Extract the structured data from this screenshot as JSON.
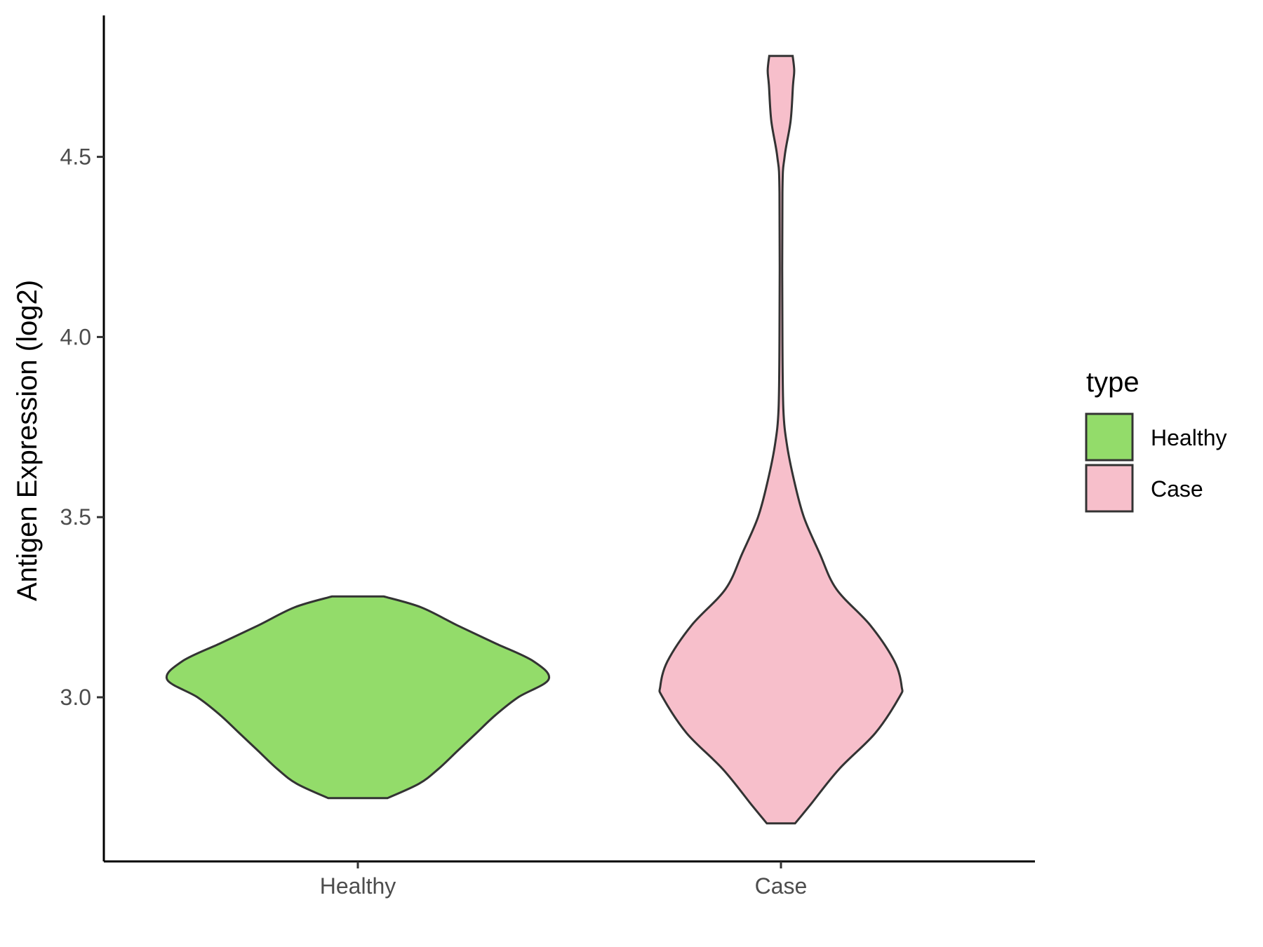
{
  "chart_data": {
    "type": "violin",
    "title": "",
    "xlabel": "",
    "ylabel": "Antigen Expression (log2)",
    "ylim": [
      2.55,
      4.9
    ],
    "yticks": [
      3.0,
      3.5,
      4.0,
      4.5
    ],
    "ytick_labels": [
      "3.0",
      "3.5",
      "4.0",
      "4.5"
    ],
    "categories": [
      "Healthy",
      "Case"
    ],
    "legend": {
      "title": "type",
      "position": "right",
      "entries": [
        {
          "label": "Healthy",
          "color": "#93dc6a"
        },
        {
          "label": "Case",
          "color": "#f7bfcb"
        }
      ]
    },
    "series": [
      {
        "category": "Healthy",
        "color": "#93dc6a",
        "min": 2.72,
        "max": 3.28,
        "density_profile": [
          [
            2.72,
            0.155
          ],
          [
            2.76,
            0.32
          ],
          [
            2.8,
            0.42
          ],
          [
            2.85,
            0.52
          ],
          [
            2.9,
            0.62
          ],
          [
            2.95,
            0.72
          ],
          [
            3.0,
            0.84
          ],
          [
            3.05,
            1.0
          ],
          [
            3.1,
            0.92
          ],
          [
            3.15,
            0.72
          ],
          [
            3.2,
            0.52
          ],
          [
            3.25,
            0.33
          ],
          [
            3.28,
            0.135
          ]
        ]
      },
      {
        "category": "Case",
        "color": "#f7bfcb",
        "min": 2.65,
        "max": 4.78,
        "density_profile": [
          [
            2.65,
            0.117
          ],
          [
            2.7,
            0.24
          ],
          [
            2.8,
            0.48
          ],
          [
            2.9,
            0.78
          ],
          [
            3.0,
            0.98
          ],
          [
            3.03,
            1.0
          ],
          [
            3.1,
            0.94
          ],
          [
            3.2,
            0.74
          ],
          [
            3.3,
            0.46
          ],
          [
            3.4,
            0.32
          ],
          [
            3.5,
            0.19
          ],
          [
            3.6,
            0.11
          ],
          [
            3.7,
            0.05
          ],
          [
            3.8,
            0.02
          ],
          [
            4.0,
            0.012
          ],
          [
            4.4,
            0.012
          ],
          [
            4.5,
            0.03
          ],
          [
            4.6,
            0.08
          ],
          [
            4.7,
            0.1
          ],
          [
            4.74,
            0.11
          ],
          [
            4.78,
            0.097
          ]
        ]
      }
    ]
  }
}
